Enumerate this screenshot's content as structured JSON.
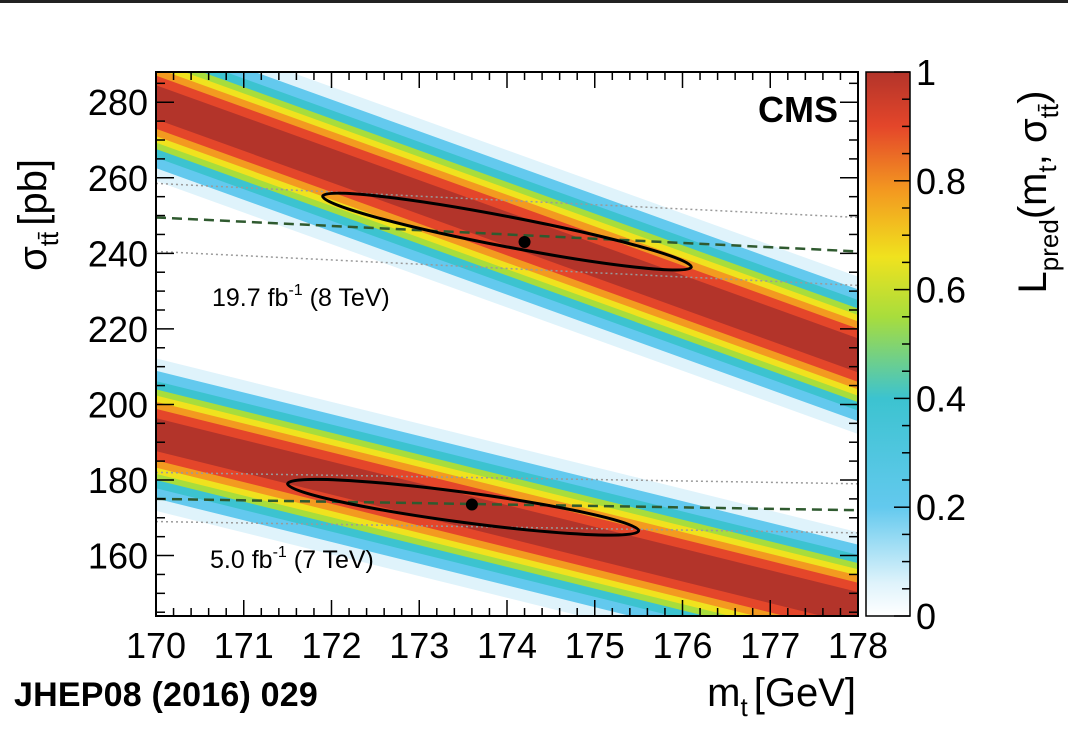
{
  "chart_data": {
    "type": "heatmap",
    "experiment_label": "CMS",
    "citation": "JHEP08 (2016) 029",
    "x_axis": {
      "label_main": "m",
      "label_sub": "t",
      "label_unit": "[GeV]",
      "range": [
        170,
        178
      ],
      "ticks": [
        "170",
        "171",
        "172",
        "173",
        "174",
        "175",
        "176",
        "177",
        "178"
      ]
    },
    "y_axis": {
      "label_main": "σ",
      "label_sub": "tt̄",
      "label_unit": "[pb]",
      "range": [
        144,
        288
      ],
      "ticks": [
        "160",
        "180",
        "200",
        "220",
        "240",
        "260",
        "280"
      ],
      "tick_values": [
        160,
        180,
        200,
        220,
        240,
        260,
        280
      ]
    },
    "colorbar": {
      "label_main": "L",
      "label_sub": "pred",
      "label_args_open": "(m",
      "label_args_sub": "t",
      "label_args_mid": ", σ",
      "label_args_sub2": "tt̄",
      "label_args_close": ")",
      "range": [
        0,
        1
      ],
      "ticks": [
        "0",
        "0.2",
        "0.4",
        "0.6",
        "0.8",
        "1"
      ],
      "tick_values": [
        0,
        0.2,
        0.4,
        0.6,
        0.8,
        1
      ]
    },
    "bands": [
      {
        "name_prefix": "19.7 fb",
        "name_sup": "-1",
        "name_suffix": " (8 TeV)",
        "center_line": [
          [
            170,
            280
          ],
          [
            178,
            213
          ]
        ],
        "measured_sigma_line": [
          [
            170,
            249.5
          ],
          [
            178,
            240.5
          ]
        ],
        "sigma_uncertainty_lines": [
          [
            [
              170,
              258.5
            ],
            [
              178,
              249.5
            ]
          ],
          [
            [
              170,
              240.5
            ],
            [
              178,
              231.5
            ]
          ]
        ],
        "best_fit": {
          "mt": 174.2,
          "sigma": 243
        },
        "contour": {
          "mt_min": 171.9,
          "mt_max": 176.1
        }
      },
      {
        "name_prefix": "5.0 fb",
        "name_sup": "-1",
        "name_suffix": " (7 TeV)",
        "center_line": [
          [
            170,
            192
          ],
          [
            178,
            146
          ]
        ],
        "measured_sigma_line": [
          [
            170,
            175
          ],
          [
            178,
            172
          ]
        ],
        "sigma_uncertainty_lines": [
          [
            [
              170,
              182
            ],
            [
              178,
              179
            ]
          ],
          [
            [
              170,
              169
            ],
            [
              178,
              166
            ]
          ]
        ],
        "best_fit": {
          "mt": 173.6,
          "sigma": 173.5
        },
        "contour": {
          "mt_min": 171.5,
          "mt_max": 175.5
        }
      }
    ],
    "colormap": [
      "#ffffff",
      "#dff3fb",
      "#63c9ee",
      "#3cc3d0",
      "#a8dd3c",
      "#f0e21e",
      "#f39a20",
      "#e4462a",
      "#b3342a"
    ]
  }
}
